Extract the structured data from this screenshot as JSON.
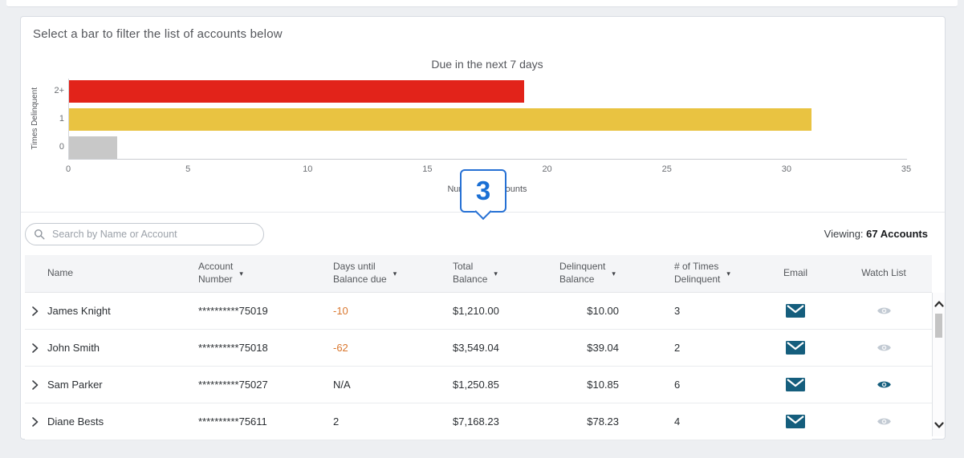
{
  "colors": {
    "accent_blue": "#1a6fd4",
    "callout_border_blue": "#2570d4",
    "bar_red": "#e2231a",
    "bar_yellow": "#e9c341",
    "bar_gray": "#c8c8c8",
    "envelope_teal": "#155e7d",
    "watch_inactive_gray": "#c2cad3",
    "negative_orange": "#d9772e"
  },
  "header": {
    "instruction": "Select a bar to filter the list of accounts below"
  },
  "chart_data": {
    "type": "bar",
    "orientation": "horizontal",
    "title": "Due in the next 7 days",
    "categories": [
      "2+",
      "1",
      "0"
    ],
    "values": [
      19,
      31,
      2
    ],
    "colors": [
      "#e2231a",
      "#e9c341",
      "#c8c8c8"
    ],
    "xlabel": "Number of Accounts",
    "ylabel": "Times Delinquent",
    "xlim": [
      0,
      35
    ],
    "x_ticks": [
      "0",
      "5",
      "10",
      "15",
      "20",
      "25",
      "30",
      "35"
    ],
    "grid": false,
    "legend": false
  },
  "callout": {
    "value": "3"
  },
  "toolbar": {
    "search_placeholder": "Search by Name or Account",
    "viewing_label": "Viewing:",
    "viewing_count": "67 Accounts"
  },
  "table": {
    "columns": [
      {
        "id": "name",
        "label": "Name",
        "sortable": false
      },
      {
        "id": "account",
        "label": "Account\nNumber",
        "sortable": true
      },
      {
        "id": "days",
        "label": "Days until\nBalance due",
        "sortable": true
      },
      {
        "id": "total",
        "label": "Total\nBalance",
        "sortable": true
      },
      {
        "id": "delinquent",
        "label": "Delinquent\nBalance",
        "sortable": true
      },
      {
        "id": "times",
        "label": "# of Times\nDelinquent",
        "sortable": true
      },
      {
        "id": "email",
        "label": "Email",
        "sortable": false
      },
      {
        "id": "watch",
        "label": "Watch List",
        "sortable": false
      }
    ],
    "rows": [
      {
        "name": "James Knight",
        "account": "**********75019",
        "days": "-10",
        "days_negative": true,
        "total": "$1,210.00",
        "delinquent": "$10.00",
        "times": "3",
        "watch_active": false
      },
      {
        "name": "John Smith",
        "account": "**********75018",
        "days": "-62",
        "days_negative": true,
        "total": "$3,549.04",
        "delinquent": "$39.04",
        "times": "2",
        "watch_active": false
      },
      {
        "name": "Sam Parker",
        "account": "**********75027",
        "days": "N/A",
        "days_negative": false,
        "total": "$1,250.85",
        "delinquent": "$10.85",
        "times": "6",
        "watch_active": true
      },
      {
        "name": "Diane Bests",
        "account": "**********75611",
        "days": "2",
        "days_negative": false,
        "total": "$7,168.23",
        "delinquent": "$78.23",
        "times": "4",
        "watch_active": false
      }
    ]
  }
}
